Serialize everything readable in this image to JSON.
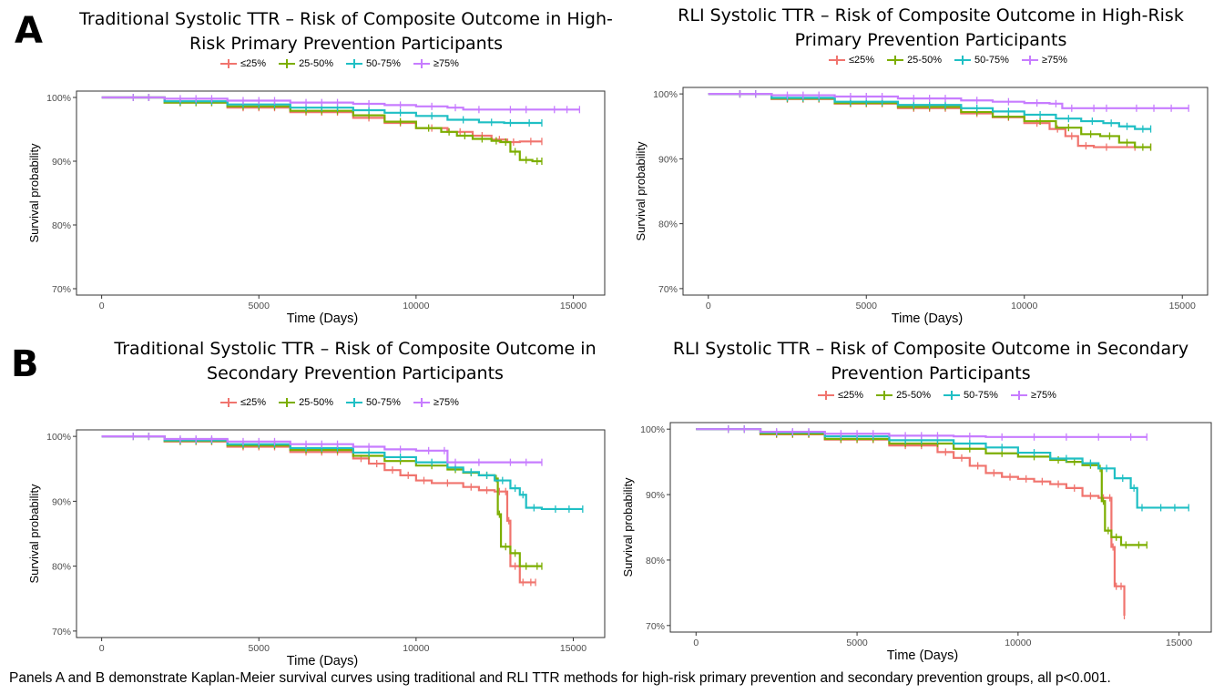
{
  "panel_labels": {
    "a": "A",
    "b": "B"
  },
  "caption": "Panels A and B demonstrate Kaplan-Meier survival curves using traditional and RLI TTR methods for high-risk primary prevention and secondary prevention groups, all p<0.001.",
  "colors": {
    "le25": "#F0746E",
    "p25_50": "#7CAE00",
    "p50_75": "#1FBFC4",
    "ge75": "#C77CFF"
  },
  "legend": [
    {
      "key": "le25",
      "label": "≤25%"
    },
    {
      "key": "p25_50",
      "label": "25-50%"
    },
    {
      "key": "p50_75",
      "label": "50-75%"
    },
    {
      "key": "ge75",
      "label": "≥75%"
    }
  ],
  "chart_data": [
    {
      "type": "line",
      "title_line1": "Traditional Systolic TTR – Risk of Composite Outcome in High-",
      "title_line2": "Risk Primary Prevention Participants",
      "xlabel": "Time (Days)",
      "ylabel": "Survival probability",
      "xlim": [
        -800,
        16000
      ],
      "ylim": [
        69,
        101
      ],
      "xticks": [
        0,
        5000,
        10000,
        15000
      ],
      "yticks": [
        100,
        90,
        80,
        70
      ],
      "ytick_labels": [
        "100%",
        "90%",
        "80%",
        "70%"
      ],
      "series": [
        {
          "name": "≤25%",
          "key": "le25",
          "x": [
            0,
            2000,
            4000,
            6000,
            8000,
            9000,
            10000,
            11000,
            11800,
            12400,
            12900,
            13300,
            14000
          ],
          "y": [
            100,
            99.2,
            98.4,
            97.7,
            96.8,
            96.0,
            95.2,
            94.6,
            94.0,
            93.4,
            93.0,
            93.1,
            93.1
          ]
        },
        {
          "name": "25-50%",
          "key": "p25_50",
          "x": [
            0,
            2000,
            4000,
            6000,
            8000,
            9000,
            10000,
            10800,
            11300,
            11800,
            12400,
            12700,
            13000,
            13300,
            13700,
            14000
          ],
          "y": [
            100,
            99.2,
            98.6,
            97.9,
            97.2,
            96.2,
            95.2,
            94.6,
            94.0,
            93.5,
            93.2,
            93.0,
            91.5,
            90.2,
            90.0,
            90.0
          ]
        },
        {
          "name": "50-75%",
          "key": "p50_75",
          "x": [
            0,
            2000,
            4000,
            6000,
            8000,
            9000,
            10000,
            11000,
            12000,
            12800,
            13200,
            14000
          ],
          "y": [
            100,
            99.4,
            98.9,
            98.4,
            98.0,
            97.6,
            97.1,
            96.5,
            96.1,
            96.0,
            96.0,
            96.0
          ]
        },
        {
          "name": "≥75%",
          "key": "ge75",
          "x": [
            0,
            2000,
            4000,
            6000,
            8000,
            9000,
            10000,
            11000,
            11500,
            12500,
            14000,
            15200
          ],
          "y": [
            100,
            99.8,
            99.5,
            99.2,
            99.0,
            98.8,
            98.6,
            98.4,
            98.1,
            98.1,
            98.1,
            98.1
          ]
        }
      ]
    },
    {
      "type": "line",
      "title_line1": "RLI Systolic TTR – Risk of Composite Outcome in High-Risk",
      "title_line2": "Primary Prevention Participants",
      "xlabel": "Time (Days)",
      "ylabel": "Survival probability",
      "xlim": [
        -800,
        15800
      ],
      "ylim": [
        69,
        101
      ],
      "xticks": [
        0,
        5000,
        10000,
        15000
      ],
      "yticks": [
        100,
        90,
        80,
        70
      ],
      "ytick_labels": [
        "100%",
        "90%",
        "80%",
        "70%"
      ],
      "series": [
        {
          "name": "≤25%",
          "key": "le25",
          "x": [
            0,
            2000,
            4000,
            6000,
            8000,
            9000,
            10000,
            10800,
            11300,
            11700,
            12200,
            13000,
            14000
          ],
          "y": [
            100,
            99.2,
            98.5,
            97.8,
            97.0,
            96.4,
            95.5,
            94.6,
            93.5,
            92.0,
            91.8,
            91.8,
            91.8
          ]
        },
        {
          "name": "25-50%",
          "key": "p25_50",
          "x": [
            0,
            2000,
            4000,
            6000,
            8000,
            9000,
            10000,
            11000,
            11800,
            12400,
            13000,
            13500,
            14000
          ],
          "y": [
            100,
            99.3,
            98.6,
            98.0,
            97.2,
            96.5,
            95.8,
            94.8,
            93.8,
            93.5,
            92.5,
            91.8,
            91.8
          ]
        },
        {
          "name": "50-75%",
          "key": "p50_75",
          "x": [
            0,
            2000,
            4000,
            6000,
            8000,
            9000,
            10000,
            11000,
            11800,
            12500,
            13000,
            13500,
            14000
          ],
          "y": [
            100,
            99.4,
            98.8,
            98.3,
            97.8,
            97.3,
            96.8,
            96.2,
            95.8,
            95.5,
            95.0,
            94.6,
            94.6
          ]
        },
        {
          "name": "≥75%",
          "key": "ge75",
          "x": [
            0,
            2000,
            4000,
            6000,
            8000,
            9000,
            10000,
            10800,
            11200,
            11800,
            13000,
            15200
          ],
          "y": [
            100,
            99.8,
            99.6,
            99.3,
            99.0,
            98.8,
            98.6,
            98.5,
            97.8,
            97.8,
            97.8,
            97.8
          ]
        }
      ]
    },
    {
      "type": "line",
      "title_line1": "Traditional Systolic TTR – Risk of Composite Outcome in",
      "title_line2": "Secondary Prevention Participants",
      "xlabel": "Time (Days)",
      "ylabel": "Survival probability",
      "xlim": [
        -800,
        16000
      ],
      "ylim": [
        69,
        101
      ],
      "xticks": [
        0,
        5000,
        10000,
        15000
      ],
      "yticks": [
        100,
        90,
        80,
        70
      ],
      "ytick_labels": [
        "100%",
        "90%",
        "80%",
        "70%"
      ],
      "series": [
        {
          "name": "≤25%",
          "key": "le25",
          "x": [
            0,
            2000,
            4000,
            6000,
            8000,
            8500,
            9000,
            9500,
            10000,
            10500,
            11500,
            12000,
            12500,
            12800,
            12900,
            13000,
            13300,
            13500,
            13800
          ],
          "y": [
            100,
            99.2,
            98.4,
            97.6,
            96.6,
            95.8,
            94.8,
            94.0,
            93.2,
            92.8,
            92.2,
            91.7,
            91.5,
            91.5,
            87.0,
            80.0,
            77.5,
            77.5,
            77.5
          ]
        },
        {
          "name": "25-50%",
          "key": "p25_50",
          "x": [
            0,
            2000,
            4000,
            6000,
            8000,
            9000,
            10000,
            11000,
            11500,
            12000,
            12500,
            12600,
            12700,
            13000,
            13300,
            13700,
            14000
          ],
          "y": [
            100,
            99.3,
            98.6,
            97.9,
            97.0,
            96.2,
            95.5,
            94.9,
            94.4,
            94.0,
            93.5,
            88.0,
            83.0,
            82.0,
            80.0,
            80.0,
            80.0
          ]
        },
        {
          "name": "50-75%",
          "key": "p50_75",
          "x": [
            0,
            2000,
            4000,
            6000,
            8000,
            9000,
            10000,
            11000,
            11500,
            12000,
            12500,
            13000,
            13300,
            13500,
            14000,
            15300
          ],
          "y": [
            100,
            99.4,
            98.8,
            98.2,
            97.5,
            96.8,
            96.0,
            95.2,
            94.5,
            94.0,
            93.2,
            92.0,
            91.0,
            89.0,
            88.8,
            88.8
          ]
        },
        {
          "name": "≥75%",
          "key": "ge75",
          "x": [
            0,
            2000,
            4000,
            6000,
            8000,
            9000,
            10000,
            10800,
            11000,
            11500,
            12500,
            14000
          ],
          "y": [
            100,
            99.6,
            99.2,
            98.8,
            98.4,
            98.0,
            97.8,
            97.8,
            96.0,
            96.0,
            96.0,
            96.0
          ]
        }
      ]
    },
    {
      "type": "line",
      "title_line1": "RLI Systolic TTR – Risk of Composite Outcome in Secondary",
      "title_line2": "Prevention Participants",
      "xlabel": "Time (Days)",
      "ylabel": "Survival probability",
      "xlim": [
        -800,
        16000
      ],
      "ylim": [
        69,
        101
      ],
      "xticks": [
        0,
        5000,
        10000,
        15000
      ],
      "yticks": [
        100,
        90,
        80,
        70
      ],
      "ytick_labels": [
        "100%",
        "90%",
        "80%",
        "70%"
      ],
      "series": [
        {
          "name": "≤25%",
          "key": "le25",
          "x": [
            0,
            2000,
            4000,
            6000,
            7500,
            8000,
            8500,
            9000,
            9500,
            10000,
            10500,
            11000,
            11500,
            12000,
            12500,
            12800,
            12900,
            13000,
            13100,
            13300
          ],
          "y": [
            100,
            99.2,
            98.4,
            97.5,
            96.5,
            95.6,
            94.4,
            93.3,
            92.7,
            92.4,
            92.0,
            91.6,
            91.0,
            89.8,
            89.5,
            89.5,
            82.0,
            76.0,
            76.0,
            71.5
          ]
        },
        {
          "name": "25-50%",
          "key": "p25_50",
          "x": [
            0,
            2000,
            4000,
            6000,
            8000,
            9000,
            10000,
            11000,
            11500,
            12000,
            12500,
            12600,
            12700,
            12900,
            13200,
            13500,
            14000
          ],
          "y": [
            100,
            99.3,
            98.5,
            97.8,
            97.0,
            96.3,
            95.8,
            95.3,
            95.0,
            94.5,
            94.0,
            89.0,
            84.5,
            83.5,
            82.3,
            82.3,
            82.3
          ]
        },
        {
          "name": "50-75%",
          "key": "p50_75",
          "x": [
            0,
            2000,
            4000,
            6000,
            8000,
            9000,
            10000,
            11000,
            12000,
            12500,
            13000,
            13500,
            13700,
            14000,
            15300
          ],
          "y": [
            100,
            99.5,
            98.9,
            98.3,
            97.8,
            97.2,
            96.4,
            95.5,
            94.8,
            94.0,
            92.5,
            91.0,
            88.0,
            88.0,
            88.0
          ]
        },
        {
          "name": "≥75%",
          "key": "ge75",
          "x": [
            0,
            2000,
            4000,
            6000,
            8000,
            9000,
            10000,
            11000,
            12000,
            13000,
            14000
          ],
          "y": [
            100,
            99.6,
            99.3,
            99.0,
            98.9,
            98.8,
            98.8,
            98.8,
            98.8,
            98.8,
            98.8
          ]
        }
      ]
    }
  ]
}
